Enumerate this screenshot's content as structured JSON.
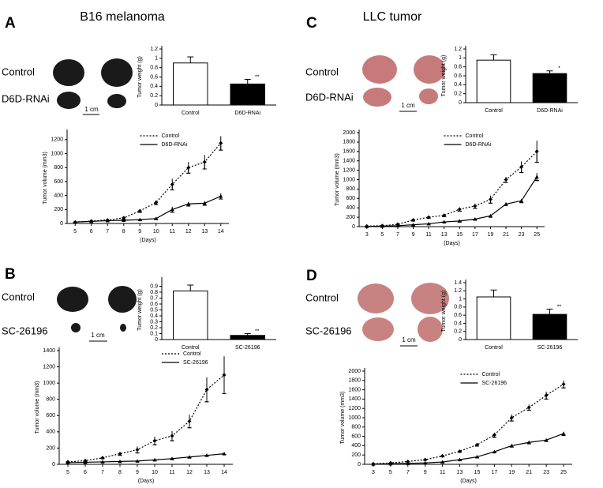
{
  "panels": [
    {
      "letter": "A",
      "title": "B16 melanoma",
      "photo_labels": [
        "Control",
        "D6D-RNAi"
      ],
      "scale": "1 cm"
    },
    {
      "letter": "B",
      "photo_labels": [
        "Control",
        "SC-26196"
      ],
      "scale": "1 cm"
    },
    {
      "letter": "C",
      "title": "LLC tumor",
      "photo_labels": [
        "Control",
        "D6D-RNAi"
      ],
      "scale": "1 cm"
    },
    {
      "letter": "D",
      "photo_labels": [
        "Control",
        "SC-26196"
      ],
      "scale": "1 cm"
    }
  ],
  "chart_data": [
    {
      "type": "bar",
      "ylabel": "Tumor weight (g)",
      "categories": [
        "Control",
        "D6D-RNAi"
      ],
      "values": [
        0.9,
        0.45
      ],
      "errors": [
        0.13,
        0.1
      ],
      "colors": [
        "#ffffff",
        "#000000"
      ],
      "significance": "**",
      "ylim": [
        0,
        1.2
      ],
      "yticks": [
        0,
        0.2,
        0.4,
        0.6,
        0.8,
        1,
        1.2
      ]
    },
    {
      "type": "line",
      "xlabel": "(Days)",
      "ylabel": "Tumor volume (mm3)",
      "legend": "upper left",
      "x": [
        5,
        6,
        7,
        8,
        9,
        10,
        11,
        12,
        13,
        14
      ],
      "xlim": [
        4.5,
        14.5
      ],
      "xticks": [
        5,
        6,
        7,
        8,
        9,
        10,
        11,
        12,
        13,
        14
      ],
      "ylim": [
        0,
        1300
      ],
      "yticks": [
        0,
        200,
        400,
        600,
        800,
        1000,
        1200
      ],
      "series": [
        {
          "name": "Control",
          "color": "#000000",
          "dash": "dotted",
          "marker": "diamond",
          "values": [
            20,
            35,
            50,
            80,
            180,
            300,
            560,
            800,
            880,
            1150
          ],
          "errors": [
            5,
            8,
            10,
            20,
            20,
            30,
            80,
            80,
            100,
            100
          ]
        },
        {
          "name": "D6D-RNAi",
          "color": "#000000",
          "dash": "solid",
          "marker": "triangle",
          "values": [
            20,
            30,
            40,
            45,
            55,
            70,
            200,
            280,
            290,
            390
          ],
          "errors": [
            5,
            5,
            5,
            5,
            10,
            10,
            40,
            30,
            30,
            40
          ]
        }
      ]
    },
    {
      "type": "bar",
      "ylabel": "Tumor weight (g)",
      "categories": [
        "Control",
        "SC-26196"
      ],
      "values": [
        0.82,
        0.07
      ],
      "errors": [
        0.1,
        0.03
      ],
      "colors": [
        "#ffffff",
        "#000000"
      ],
      "significance": "**",
      "ylim": [
        0,
        1
      ],
      "yticks": [
        0,
        0.1,
        0.2,
        0.3,
        0.4,
        0.5,
        0.6,
        0.7,
        0.8,
        0.9
      ]
    },
    {
      "type": "line",
      "xlabel": "(Days)",
      "ylabel": "Tumor volume (mm3)",
      "legend": "upper center",
      "x": [
        5,
        6,
        7,
        8,
        9,
        10,
        11,
        12,
        13,
        14
      ],
      "xlim": [
        4.5,
        14.5
      ],
      "xticks": [
        5,
        6,
        7,
        8,
        9,
        10,
        11,
        12,
        13,
        14
      ],
      "ylim": [
        0,
        1400
      ],
      "yticks": [
        0,
        200,
        400,
        600,
        800,
        1000,
        1200,
        1400
      ],
      "series": [
        {
          "name": "Control",
          "color": "#000000",
          "dash": "dotted",
          "marker": "diamond",
          "values": [
            30,
            45,
            80,
            130,
            180,
            290,
            350,
            530,
            920,
            1100
          ],
          "errors": [
            5,
            10,
            10,
            20,
            40,
            50,
            60,
            80,
            150,
            230
          ]
        },
        {
          "name": "SC-26196",
          "color": "#000000",
          "dash": "solid",
          "marker": "triangle",
          "values": [
            20,
            25,
            30,
            35,
            40,
            55,
            70,
            90,
            110,
            130
          ],
          "errors": [
            5,
            5,
            5,
            5,
            5,
            8,
            8,
            10,
            10,
            10
          ]
        }
      ]
    },
    {
      "type": "bar",
      "ylabel": "Tumor weight (g)",
      "categories": [
        "Control",
        "D6D-RNAi"
      ],
      "values": [
        0.95,
        0.65
      ],
      "errors": [
        0.12,
        0.06
      ],
      "colors": [
        "#ffffff",
        "#000000"
      ],
      "significance": "*",
      "ylim": [
        0,
        1.2
      ],
      "yticks": [
        0,
        0.2,
        0.4,
        0.6,
        0.8,
        1,
        1.2
      ]
    },
    {
      "type": "line",
      "xlabel": "(Days)",
      "ylabel": "Tumor volume (mm3)",
      "legend": "upper left",
      "x": [
        3,
        5,
        7,
        9,
        11,
        13,
        15,
        17,
        19,
        21,
        23,
        25
      ],
      "xlim": [
        2,
        26
      ],
      "xticks": [
        3,
        5,
        7,
        9,
        11,
        13,
        15,
        17,
        19,
        21,
        23,
        25
      ],
      "ylim": [
        0,
        2000
      ],
      "yticks": [
        0,
        200,
        400,
        600,
        800,
        1000,
        1200,
        1400,
        1600,
        1800,
        2000
      ],
      "series": [
        {
          "name": "Control",
          "color": "#000000",
          "dash": "dotted",
          "marker": "diamond",
          "values": [
            10,
            20,
            50,
            140,
            200,
            240,
            370,
            440,
            580,
            1000,
            1270,
            1600
          ],
          "errors": [
            5,
            5,
            10,
            20,
            20,
            30,
            40,
            50,
            80,
            60,
            120,
            230
          ]
        },
        {
          "name": "D6D-RNAi",
          "color": "#000000",
          "dash": "solid",
          "marker": "triangle",
          "values": [
            5,
            10,
            20,
            40,
            60,
            100,
            120,
            160,
            230,
            480,
            550,
            1060
          ],
          "errors": [
            5,
            5,
            5,
            10,
            10,
            10,
            20,
            20,
            30,
            30,
            40,
            80
          ]
        }
      ]
    },
    {
      "type": "bar",
      "ylabel": "Tumor weight (g)",
      "categories": [
        "Control",
        "SC-26196"
      ],
      "values": [
        1.05,
        0.62
      ],
      "errors": [
        0.17,
        0.13
      ],
      "colors": [
        "#ffffff",
        "#000000"
      ],
      "significance": "**",
      "ylim": [
        0,
        1.4
      ],
      "yticks": [
        0,
        0.2,
        0.4,
        0.6,
        0.8,
        1,
        1.2,
        1.4
      ]
    },
    {
      "type": "line",
      "xlabel": "(Days)",
      "ylabel": "Tumor volume (mm3)",
      "legend": "upper left",
      "x": [
        3,
        5,
        7,
        9,
        11,
        13,
        15,
        17,
        19,
        21,
        23,
        25
      ],
      "xlim": [
        2,
        26
      ],
      "xticks": [
        3,
        5,
        7,
        9,
        11,
        13,
        15,
        17,
        19,
        21,
        23,
        25
      ],
      "ylim": [
        0,
        2000
      ],
      "yticks": [
        0,
        200,
        400,
        600,
        800,
        1000,
        1200,
        1400,
        1600,
        1800,
        2000
      ],
      "series": [
        {
          "name": "Control",
          "color": "#000000",
          "dash": "dotted",
          "marker": "diamond",
          "values": [
            10,
            30,
            60,
            100,
            180,
            280,
            420,
            630,
            1000,
            1220,
            1480,
            1720
          ],
          "errors": [
            5,
            5,
            10,
            10,
            20,
            20,
            30,
            50,
            70,
            60,
            80,
            80
          ]
        },
        {
          "name": "SC-26196",
          "color": "#000000",
          "dash": "solid",
          "marker": "triangle",
          "values": [
            5,
            10,
            20,
            30,
            50,
            100,
            160,
            270,
            400,
            470,
            520,
            660
          ],
          "errors": [
            5,
            5,
            5,
            5,
            10,
            10,
            20,
            20,
            30,
            30,
            30,
            40
          ]
        }
      ]
    }
  ]
}
